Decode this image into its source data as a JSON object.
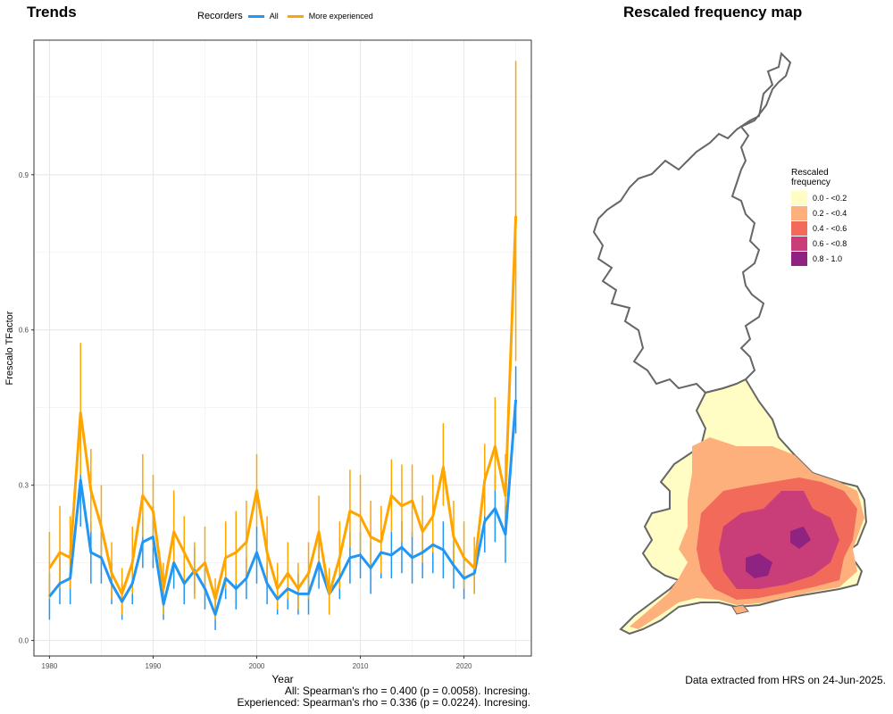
{
  "left_title": "Trends",
  "right_title": "Rescaled frequency map",
  "legend": {
    "title": "Recorders",
    "items": [
      {
        "label": "All",
        "color": "#2196F3"
      },
      {
        "label": "More experienced",
        "color": "#FFA500"
      }
    ]
  },
  "stats": {
    "line1": "All: Spearman's rho = 0.400 (p = 0.0058). Incresing.",
    "line2": "Experienced: Spearman's rho = 0.336 (p = 0.0224). Incresing."
  },
  "map": {
    "legend_title_1": "Rescaled",
    "legend_title_2": "frequency",
    "bins": [
      {
        "label": "0.0 - <0.2",
        "color": "#FFFDC4"
      },
      {
        "label": "0.2 - <0.4",
        "color": "#FDB07C"
      },
      {
        "label": "0.4 - <0.6",
        "color": "#F26A59"
      },
      {
        "label": "0.6 - <0.8",
        "color": "#C93D78"
      },
      {
        "label": "0.8 - 1.0",
        "color": "#8E2381"
      }
    ],
    "source": "Data extracted from HRS on 24-Jun-2025."
  },
  "chart_data": {
    "type": "line",
    "xlabel": "Year",
    "ylabel": "Frescalo TFactor",
    "xlim": [
      1978.5,
      2026.5
    ],
    "ylim": [
      -0.03,
      1.16
    ],
    "xticks": [
      1980,
      1990,
      2000,
      2010,
      2020
    ],
    "yticks": [
      0.0,
      0.3,
      0.6,
      0.9
    ],
    "ytick_labels": [
      "0.0",
      "0.3",
      "0.6",
      "0.9"
    ],
    "grid": true,
    "x": [
      1980,
      1981,
      1982,
      1983,
      1984,
      1985,
      1986,
      1987,
      1988,
      1989,
      1990,
      1991,
      1992,
      1993,
      1994,
      1995,
      1996,
      1997,
      1998,
      1999,
      2000,
      2001,
      2002,
      2003,
      2004,
      2005,
      2006,
      2007,
      2008,
      2009,
      2010,
      2011,
      2012,
      2013,
      2014,
      2015,
      2016,
      2017,
      2018,
      2019,
      2020,
      2021,
      2022,
      2023,
      2024,
      2025
    ],
    "series": [
      {
        "name": "All",
        "color": "#2196F3",
        "values": [
          0.085,
          0.11,
          0.12,
          0.31,
          0.17,
          0.16,
          0.11,
          0.075,
          0.11,
          0.19,
          0.2,
          0.07,
          0.15,
          0.11,
          0.135,
          0.1,
          0.05,
          0.12,
          0.1,
          0.12,
          0.17,
          0.11,
          0.08,
          0.1,
          0.09,
          0.09,
          0.15,
          0.09,
          0.12,
          0.16,
          0.165,
          0.14,
          0.17,
          0.165,
          0.18,
          0.16,
          0.17,
          0.185,
          0.175,
          0.145,
          0.12,
          0.13,
          0.23,
          0.255,
          0.205,
          0.465
        ],
        "lower": [
          0.04,
          0.07,
          0.07,
          0.22,
          0.11,
          0.11,
          0.07,
          0.04,
          0.07,
          0.14,
          0.14,
          0.04,
          0.1,
          0.07,
          0.09,
          0.06,
          0.02,
          0.08,
          0.06,
          0.08,
          0.11,
          0.07,
          0.05,
          0.06,
          0.05,
          0.05,
          0.1,
          0.05,
          0.08,
          0.11,
          0.12,
          0.09,
          0.12,
          0.12,
          0.13,
          0.11,
          0.12,
          0.13,
          0.12,
          0.1,
          0.08,
          0.09,
          0.17,
          0.19,
          0.15,
          0.4
        ],
        "upper": [
          0.13,
          0.16,
          0.17,
          0.4,
          0.23,
          0.21,
          0.15,
          0.11,
          0.15,
          0.24,
          0.26,
          0.1,
          0.2,
          0.15,
          0.18,
          0.14,
          0.08,
          0.16,
          0.14,
          0.16,
          0.22,
          0.15,
          0.11,
          0.14,
          0.13,
          0.13,
          0.2,
          0.13,
          0.16,
          0.21,
          0.21,
          0.19,
          0.22,
          0.21,
          0.23,
          0.21,
          0.22,
          0.24,
          0.23,
          0.19,
          0.16,
          0.17,
          0.28,
          0.32,
          0.26,
          0.53
        ]
      },
      {
        "name": "More experienced",
        "color": "#FFA500",
        "values": [
          0.14,
          0.17,
          0.16,
          0.44,
          0.29,
          0.22,
          0.13,
          0.09,
          0.15,
          0.28,
          0.25,
          0.1,
          0.21,
          0.17,
          0.13,
          0.15,
          0.08,
          0.16,
          0.17,
          0.19,
          0.29,
          0.17,
          0.1,
          0.13,
          0.1,
          0.13,
          0.21,
          0.09,
          0.16,
          0.25,
          0.24,
          0.2,
          0.19,
          0.28,
          0.26,
          0.27,
          0.21,
          0.24,
          0.335,
          0.2,
          0.16,
          0.14,
          0.31,
          0.375,
          0.28,
          0.82
        ],
        "lower": [
          0.08,
          0.1,
          0.1,
          0.32,
          0.21,
          0.15,
          0.08,
          0.05,
          0.09,
          0.2,
          0.18,
          0.05,
          0.14,
          0.11,
          0.08,
          0.09,
          0.04,
          0.1,
          0.11,
          0.12,
          0.22,
          0.11,
          0.06,
          0.08,
          0.06,
          0.08,
          0.14,
          0.05,
          0.1,
          0.18,
          0.17,
          0.14,
          0.13,
          0.21,
          0.19,
          0.2,
          0.15,
          0.17,
          0.26,
          0.14,
          0.1,
          0.09,
          0.24,
          0.29,
          0.21,
          0.54
        ],
        "upper": [
          0.21,
          0.26,
          0.24,
          0.575,
          0.37,
          0.3,
          0.19,
          0.14,
          0.22,
          0.36,
          0.32,
          0.15,
          0.29,
          0.24,
          0.19,
          0.22,
          0.12,
          0.23,
          0.25,
          0.27,
          0.36,
          0.24,
          0.15,
          0.19,
          0.15,
          0.19,
          0.28,
          0.14,
          0.23,
          0.33,
          0.32,
          0.27,
          0.26,
          0.35,
          0.34,
          0.34,
          0.28,
          0.32,
          0.42,
          0.27,
          0.23,
          0.2,
          0.38,
          0.47,
          0.36,
          1.12
        ]
      }
    ]
  }
}
